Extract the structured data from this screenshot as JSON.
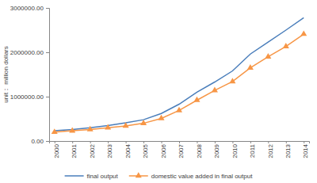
{
  "chart_data": {
    "type": "line",
    "y_label": "unit： million dollars",
    "categories": [
      "2000",
      "2001",
      "2002",
      "2003",
      "2004",
      "2005",
      "2006",
      "2007",
      "2008",
      "2009",
      "2010",
      "2011",
      "2012",
      "2013",
      "2014"
    ],
    "ylim": [
      0,
      3000000
    ],
    "yticks": [
      {
        "value": 0,
        "label": "0.00"
      },
      {
        "value": 1000000,
        "label": "1000000.00"
      },
      {
        "value": 2000000,
        "label": "2000000.00"
      },
      {
        "value": 3000000,
        "label": "3000000.00"
      }
    ],
    "grid": false,
    "legend": "bottom",
    "series": [
      {
        "name": "final output",
        "color": "#4a7ebb",
        "marker": "none",
        "values": [
          230000,
          260000,
          300000,
          350000,
          410000,
          480000,
          620000,
          830000,
          1100000,
          1330000,
          1580000,
          1960000,
          2230000,
          2500000,
          2780000
        ]
      },
      {
        "name": "domestic value added in final output",
        "color": "#f79646",
        "marker": "triangle",
        "values": [
          200000,
          230000,
          260000,
          300000,
          340000,
          400000,
          510000,
          690000,
          920000,
          1140000,
          1340000,
          1650000,
          1900000,
          2130000,
          2410000
        ]
      }
    ]
  }
}
